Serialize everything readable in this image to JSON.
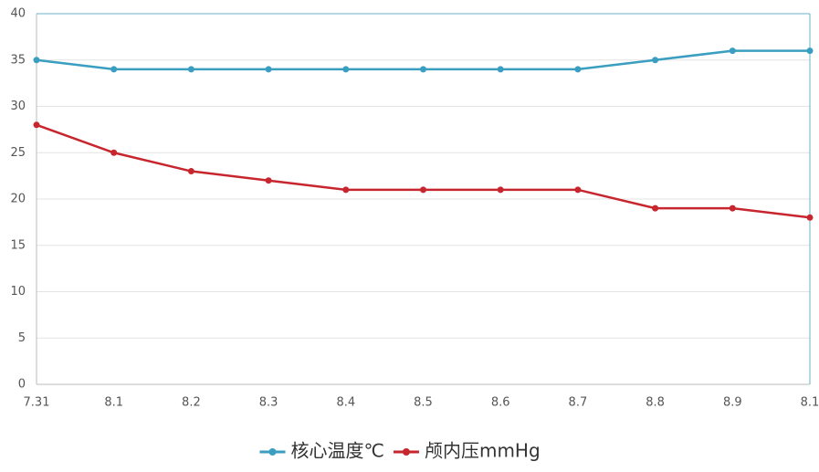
{
  "chart_data": {
    "type": "line",
    "categories": [
      "7.31",
      "8.1",
      "8.2",
      "8.3",
      "8.4",
      "8.5",
      "8.6",
      "8.7",
      "8.8",
      "8.9",
      "8.1"
    ],
    "series": [
      {
        "name": "核心温度℃",
        "color": "#3a9ec0",
        "values": [
          35,
          34,
          34,
          34,
          34,
          34,
          34,
          34,
          35,
          36,
          36
        ]
      },
      {
        "name": "颅内压mmHg",
        "color": "#c8262e",
        "values": [
          28,
          25,
          23,
          22,
          21,
          21,
          21,
          21,
          19,
          19,
          18
        ]
      }
    ],
    "ylim": [
      0,
      40
    ],
    "yticks": [
      0,
      5,
      10,
      15,
      20,
      25,
      30,
      35,
      40
    ],
    "grid": true,
    "legend": "bottom"
  }
}
